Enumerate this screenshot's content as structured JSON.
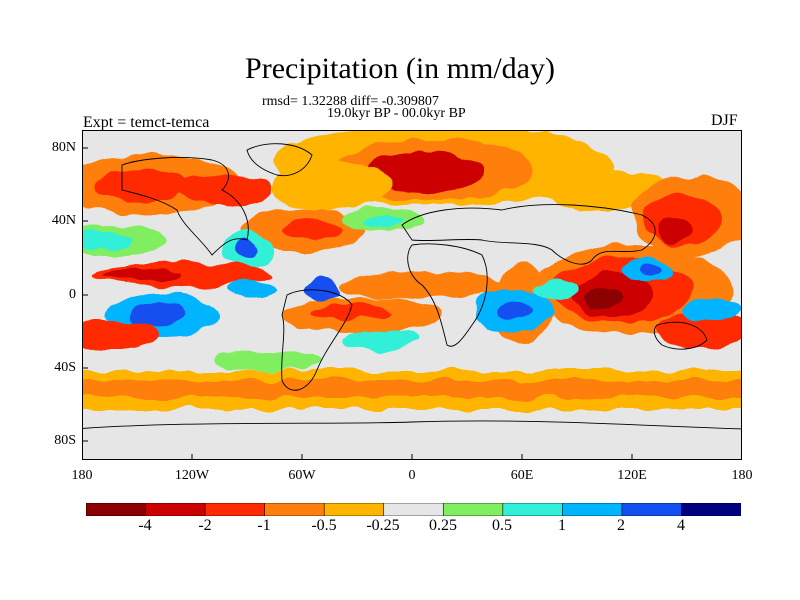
{
  "map": {
    "title": "Precipitation (in mm/day)",
    "stats": "rmsd= 1.32288 diff= -0.309807",
    "period": "19.0kyr BP - 00.0kyr BP",
    "experiment": "Expt = temct-temca",
    "season": "DJF",
    "lat_labels": [
      "80N",
      "40N",
      "0",
      "40S",
      "80S"
    ],
    "lon_labels": [
      "180",
      "120W",
      "60W",
      "0",
      "60E",
      "120E",
      "180"
    ],
    "colorbar_labels": [
      "-4",
      "-2",
      "-1",
      "-0.5",
      "-0.25",
      "0.25",
      "0.5",
      "1",
      "2",
      "4"
    ],
    "colorbar_colors": [
      "#8b0000",
      "#cc0000",
      "#ff2a00",
      "#ff7f0e",
      "#ffb400",
      "#e6e6e6",
      "#80ee60",
      "#30f0d8",
      "#00b4ff",
      "#1450f0",
      "#000080"
    ]
  }
}
